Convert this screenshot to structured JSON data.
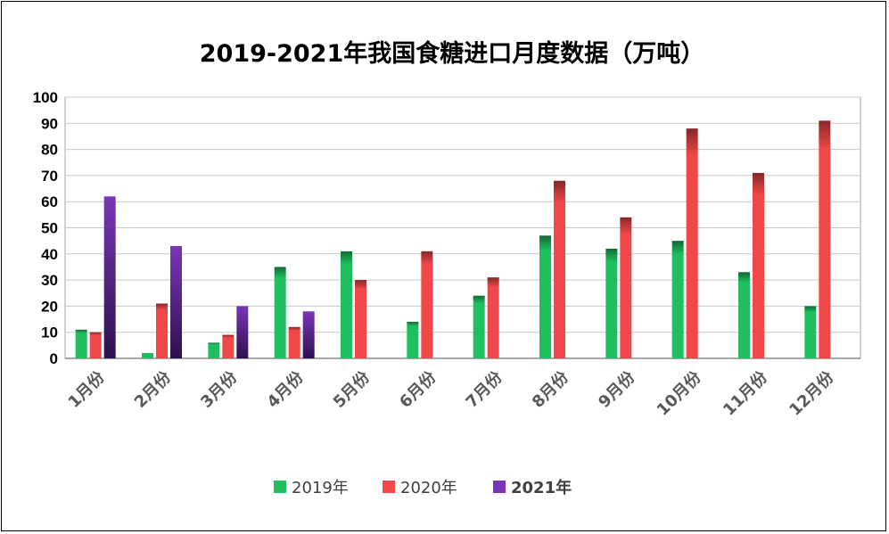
{
  "chart_data": {
    "type": "bar",
    "title": "2019-2021年我国食糖进口月度数据（万吨）",
    "xlabel": "",
    "ylabel": "",
    "ylim": [
      0,
      100
    ],
    "yticks": [
      0,
      10,
      20,
      30,
      40,
      50,
      60,
      70,
      80,
      90,
      100
    ],
    "grid": true,
    "legend_position": "bottom",
    "categories": [
      "1月份",
      "2月份",
      "3月份",
      "4月份",
      "5月份",
      "6月份",
      "7月份",
      "8月份",
      "9月份",
      "10月份",
      "11月份",
      "12月份"
    ],
    "series": [
      {
        "name": "2019年",
        "color": "#1fbf60",
        "values": [
          11,
          2,
          6,
          35,
          41,
          14,
          24,
          47,
          42,
          45,
          33,
          20
        ]
      },
      {
        "name": "2020年",
        "color": "#f04848",
        "values": [
          10,
          21,
          9,
          12,
          30,
          41,
          31,
          68,
          54,
          88,
          71,
          91
        ]
      },
      {
        "name": "2021年",
        "color": "#7a36b8",
        "values": [
          62,
          43,
          20,
          18,
          null,
          null,
          null,
          null,
          null,
          null,
          null,
          null
        ]
      }
    ]
  }
}
